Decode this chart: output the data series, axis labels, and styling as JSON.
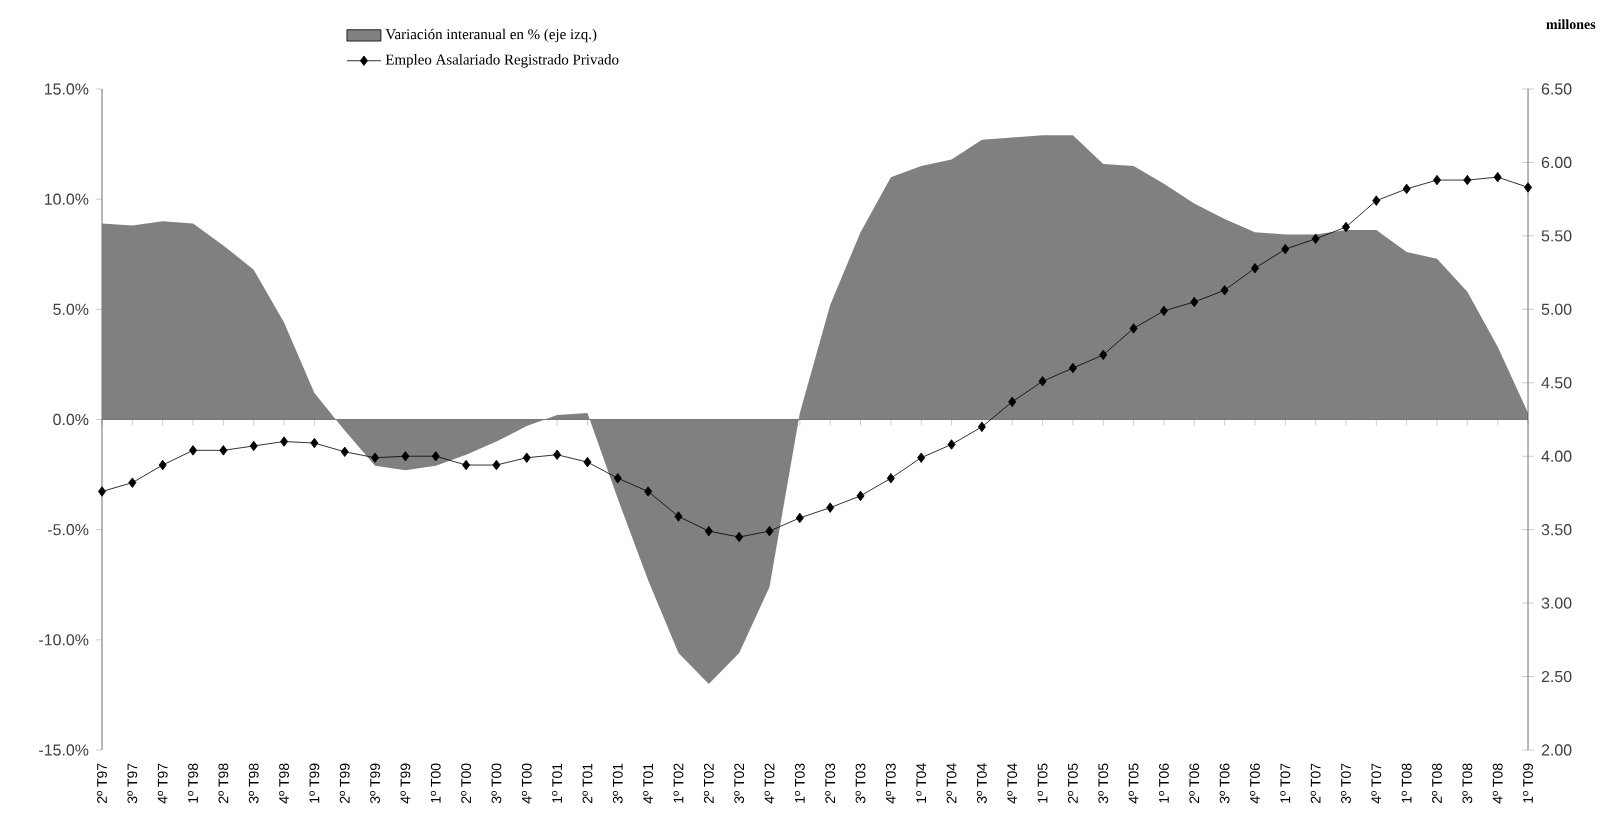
{
  "chart_data": {
    "type": "area",
    "categories": [
      "2º T97",
      "3º T97",
      "4º T97",
      "1º T98",
      "2º T98",
      "3º T98",
      "4º T98",
      "1º T99",
      "2º T99",
      "3º T99",
      "4º T99",
      "1º T00",
      "2º T00",
      "3º T00",
      "4º T00",
      "1º T01",
      "2º T01",
      "3º T01",
      "4º T01",
      "1º T02",
      "2º T02",
      "3º T02",
      "4º T02",
      "1º T03",
      "2º T03",
      "3º T03",
      "4º T03",
      "1º T04",
      "2º T04",
      "3º T04",
      "4º T04",
      "1º T05",
      "2º T05",
      "3º T05",
      "4º T05",
      "1º T06",
      "2º T06",
      "3º T06",
      "4º T06",
      "1º T07",
      "2º T07",
      "3º T07",
      "4º T07",
      "1º T08",
      "2º T08",
      "3º T08",
      "4º T08",
      "1º T09"
    ],
    "series": [
      {
        "name": "Variación interanual en % (eje izq.)",
        "color": "#808080",
        "values": [
          8.9,
          8.8,
          9.0,
          8.9,
          7.9,
          6.8,
          4.4,
          1.2,
          -0.5,
          -2.1,
          -2.3,
          -2.1,
          -1.6,
          -1.0,
          -0.3,
          0.2,
          0.3,
          -3.6,
          -7.3,
          -10.6,
          -12.0,
          -10.6,
          -7.6,
          0.3,
          5.2,
          8.5,
          11.0,
          11.5,
          11.8,
          12.7,
          12.8,
          12.9,
          12.9,
          11.6,
          11.5,
          10.7,
          9.8,
          9.1,
          8.5,
          8.4,
          8.4,
          8.6,
          8.6,
          7.6,
          7.3,
          5.8,
          3.3,
          0.3
        ]
      },
      {
        "name": "Empleo Asalariado Registrado Privado",
        "type": "line",
        "axis": "y2",
        "color": "#000000",
        "marker": "diamond",
        "values": [
          3.76,
          3.82,
          3.94,
          4.04,
          4.04,
          4.07,
          4.1,
          4.09,
          4.03,
          3.99,
          4.0,
          4.0,
          3.94,
          3.94,
          3.99,
          4.01,
          3.96,
          3.85,
          3.76,
          3.59,
          3.49,
          3.45,
          3.49,
          3.58,
          3.65,
          3.73,
          3.85,
          3.99,
          4.08,
          4.2,
          4.37,
          4.51,
          4.6,
          4.69,
          4.87,
          4.99,
          5.05,
          5.13,
          5.28,
          5.41,
          5.48,
          5.56,
          5.74,
          5.82,
          5.88,
          5.88,
          5.9,
          5.83
        ]
      }
    ],
    "y2label": "millones",
    "ylim": [
      -15,
      15
    ],
    "yticks": [
      {
        "value": -15,
        "label": "-15.0%"
      },
      {
        "value": -10,
        "label": "-10.0%"
      },
      {
        "value": -5,
        "label": "-5.0%"
      },
      {
        "value": 0,
        "label": "0.0%"
      },
      {
        "value": 5,
        "label": "5.0%"
      },
      {
        "value": 10,
        "label": "10.0%"
      },
      {
        "value": 15,
        "label": "15.0%"
      }
    ],
    "y2lim": [
      2,
      6.5
    ],
    "y2ticks": [
      {
        "value": 2,
        "label": "2.00"
      },
      {
        "value": 2.5,
        "label": "2.50"
      },
      {
        "value": 3,
        "label": "3.00"
      },
      {
        "value": 3.5,
        "label": "3.50"
      },
      {
        "value": 4,
        "label": "4.00"
      },
      {
        "value": 4.5,
        "label": "4.50"
      },
      {
        "value": 5,
        "label": "5.00"
      },
      {
        "value": 5.5,
        "label": "5.50"
      },
      {
        "value": 6,
        "label": "6.00"
      },
      {
        "value": 6.5,
        "label": "6.50"
      }
    ],
    "legend": "top"
  }
}
